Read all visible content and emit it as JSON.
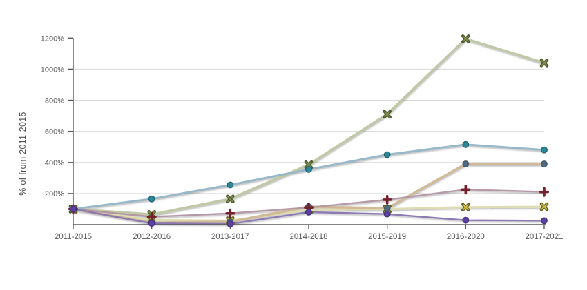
{
  "chart_data": {
    "type": "line",
    "title": "",
    "xlabel": "",
    "ylabel": "% of from 2011-2015",
    "ylim": [
      0,
      1260
    ],
    "grid": true,
    "legend": "none",
    "axis_color": "#5a5a5a",
    "grid_color": "#d9d9d9",
    "text_color": "#595959",
    "background": "#ffffff",
    "categories": [
      "2011-2015",
      "2012-2016",
      "2013-2017",
      "2014-2018",
      "2015-2019",
      "2016-2020",
      "2017-2021"
    ],
    "y_ticks": [
      {
        "value": 200,
        "label": "200%"
      },
      {
        "value": 400,
        "label": "400%"
      },
      {
        "value": 600,
        "label": "600%"
      },
      {
        "value": 800,
        "label": "800%"
      },
      {
        "value": 1000,
        "label": "1000%"
      },
      {
        "value": 1200,
        "label": "1200%"
      }
    ],
    "y_gridlines": [
      200,
      400,
      600,
      800,
      1000
    ],
    "series": [
      {
        "name": "yellow-x",
        "marker": "x",
        "line_color": "#dcdbae",
        "marker_color": "#d9c33c",
        "marker_edge": "#5f5f24",
        "line_width": 3,
        "values": [
          100,
          30,
          25,
          95,
          100,
          112,
          115
        ]
      },
      {
        "name": "sage-x",
        "marker": "x",
        "line_color": "#bec6a2",
        "marker_color": "#7d8b4b",
        "marker_edge": "#4d592d",
        "line_width": 3.6,
        "values": [
          100,
          65,
          165,
          385,
          710,
          1195,
          1040
        ]
      },
      {
        "name": "steelblue-circle",
        "marker": "circle",
        "line_color": "#92b4c7",
        "marker_color": "#2b8799",
        "marker_edge": "#1d5f6e",
        "line_width": 3,
        "values": [
          100,
          165,
          255,
          355,
          450,
          515,
          480
        ]
      },
      {
        "name": "tan-slate-circle",
        "marker": "circle",
        "line_color": "#cfb795",
        "marker_color": "#4f6b80",
        "marker_edge": "#3b5468",
        "line_width": 3.6,
        "values": [
          100,
          12,
          18,
          115,
          105,
          390,
          390
        ]
      },
      {
        "name": "darkred-plus",
        "marker": "plus",
        "line_color": "#b295a3",
        "marker_color": "#74202b",
        "marker_edge": "#5a121c",
        "line_width": 2.4,
        "values": [
          100,
          50,
          72,
          110,
          160,
          225,
          210
        ]
      },
      {
        "name": "purple-circle",
        "marker": "circle",
        "line_color": "#8775b0",
        "marker_color": "#5d41a0",
        "marker_edge": "#452f82",
        "line_width": 2.4,
        "values": [
          100,
          8,
          4,
          80,
          68,
          28,
          25
        ]
      }
    ]
  }
}
